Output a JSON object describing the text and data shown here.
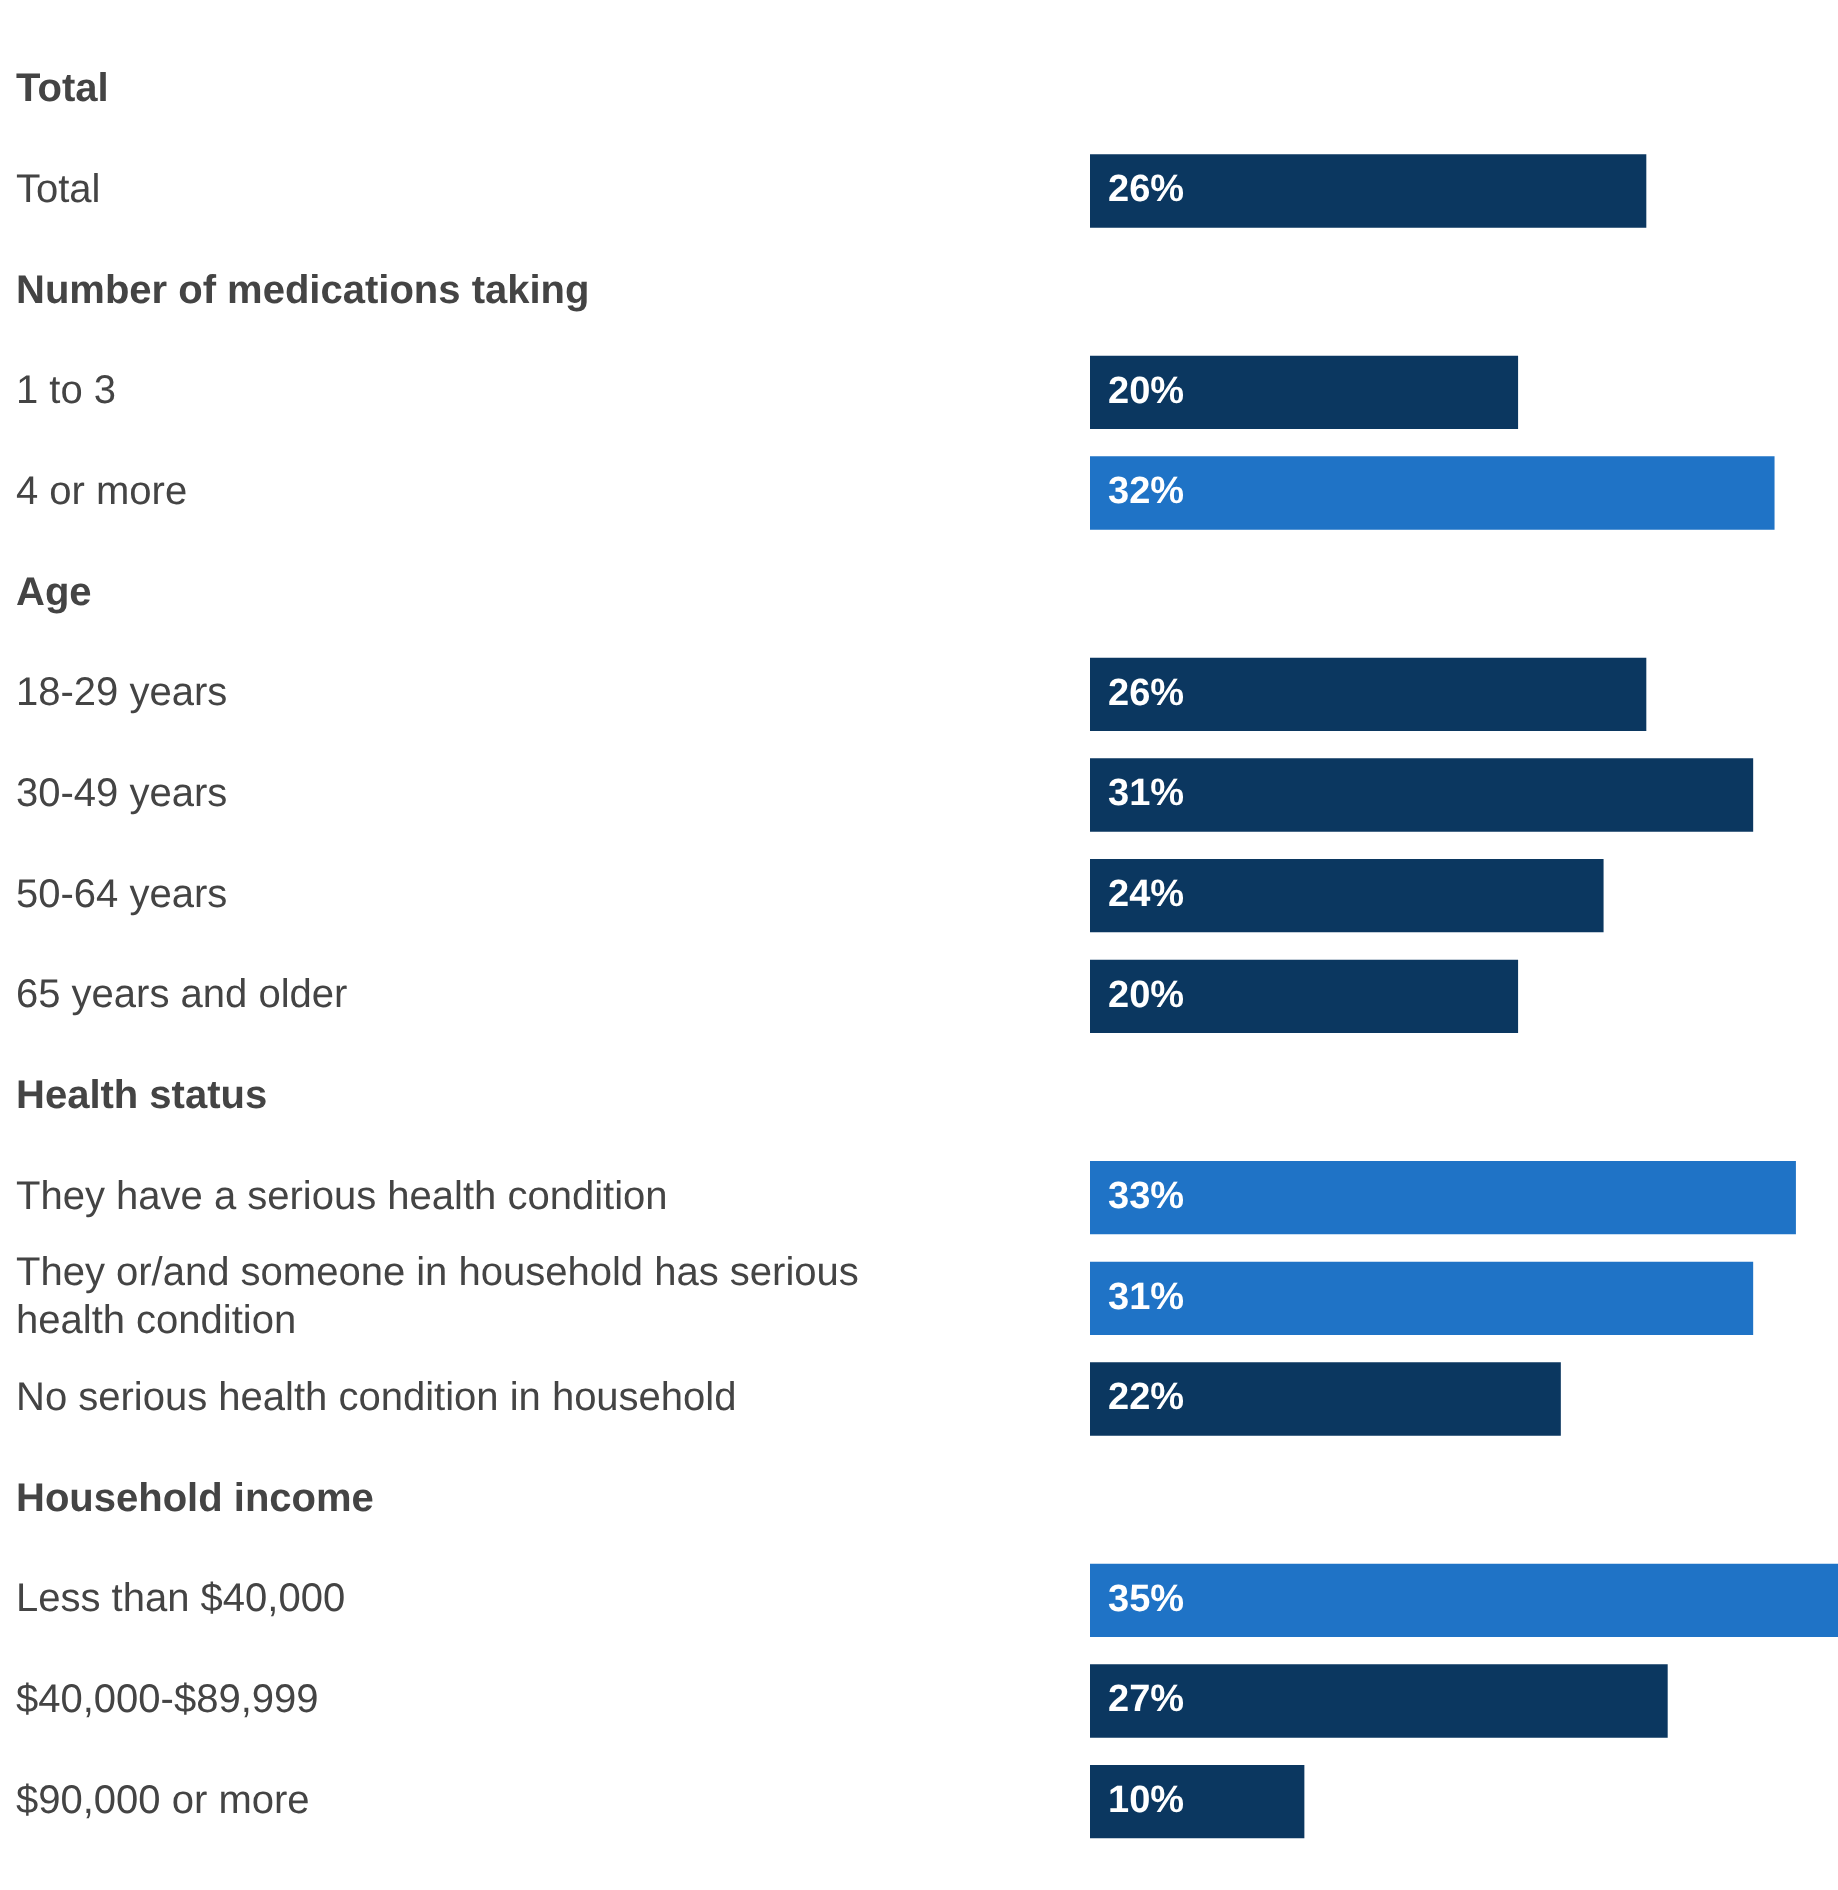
{
  "chart_data": {
    "type": "bar",
    "orientation": "horizontal",
    "tick_labels": "y",
    "grid": false,
    "legend": false,
    "categories": [
      "Total",
      "Total",
      "Number of medications taking",
      "1 to 3",
      "4 or more",
      "Age",
      "18-29 years",
      "30-49 years",
      "50-64 years",
      "65 years and older",
      "Health status",
      "They have a serious health condition",
      "They or/and someone in household has serious health condition",
      "No serious health condition in household",
      "Household income",
      "Less than $40,000",
      "$40,000-$89,999",
      "$90,000 or more"
    ],
    "values": [
      null,
      26,
      null,
      20,
      32,
      null,
      26,
      31,
      24,
      20,
      null,
      33,
      31,
      22,
      null,
      35,
      27,
      10
    ],
    "colors": [
      null,
      "#0b3760",
      null,
      "#0b3760",
      "#1f73c6",
      null,
      "#0b3760",
      "#0b3760",
      "#0b3760",
      "#0b3760",
      null,
      "#1f73c6",
      "#1f73c6",
      "#0b3760",
      null,
      "#1f73c6",
      "#0b3760",
      "#0b3760"
    ],
    "value_labels": [
      null,
      "26%",
      null,
      "20%",
      "32%",
      null,
      "26%",
      "31%",
      "24%",
      "20%",
      null,
      "33%",
      "31%",
      "22%",
      null,
      "35%",
      "27%",
      "10%"
    ]
  }
}
